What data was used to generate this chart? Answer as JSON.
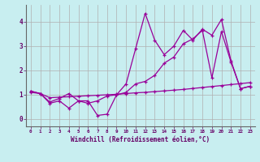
{
  "xlabel": "Windchill (Refroidissement éolien,°C)",
  "background_color": "#c8eef0",
  "grid_color": "#b0b0b0",
  "line_color": "#990099",
  "x_values": [
    0,
    1,
    2,
    3,
    4,
    5,
    6,
    7,
    8,
    9,
    10,
    11,
    12,
    13,
    14,
    15,
    16,
    17,
    18,
    19,
    20,
    21,
    22,
    23
  ],
  "line1_y": [
    1.15,
    1.05,
    0.65,
    0.75,
    0.45,
    0.75,
    0.75,
    0.15,
    0.2,
    1.0,
    1.45,
    2.9,
    4.35,
    3.25,
    2.65,
    3.0,
    3.65,
    3.25,
    3.7,
    3.45,
    4.1,
    2.4,
    1.25,
    1.35
  ],
  "line2_y": [
    1.15,
    1.05,
    0.7,
    0.85,
    1.05,
    0.75,
    0.65,
    0.75,
    0.95,
    1.0,
    1.1,
    1.45,
    1.55,
    1.8,
    2.3,
    2.55,
    3.1,
    3.3,
    3.65,
    1.7,
    3.6,
    2.35,
    1.25,
    1.35
  ],
  "line3_y": [
    1.1,
    1.05,
    0.88,
    0.9,
    0.92,
    0.94,
    0.96,
    0.98,
    1.0,
    1.02,
    1.05,
    1.08,
    1.1,
    1.13,
    1.16,
    1.19,
    1.22,
    1.26,
    1.3,
    1.34,
    1.38,
    1.42,
    1.46,
    1.5
  ],
  "ylim": [
    -0.3,
    4.7
  ],
  "xlim": [
    -0.5,
    23.5
  ]
}
